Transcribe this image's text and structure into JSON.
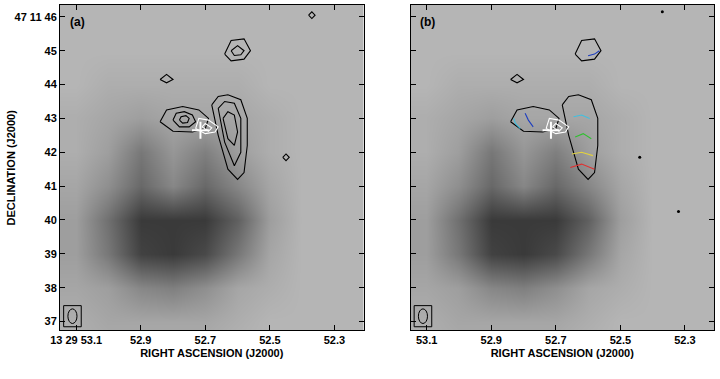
{
  "chart_data": [
    {
      "type": "image",
      "label": "(a)",
      "x_label": "RIGHT ASCENSION (J2000)",
      "y_label": "DECLINATION (J2000)",
      "xlim": [
        53.15,
        52.21
      ],
      "ylim": [
        36.75,
        46.35
      ],
      "xticks": [
        {
          "value": 53.1,
          "label": "13 29 53.1"
        },
        52.9,
        52.7,
        52.5,
        52.3
      ],
      "yticks": [
        37,
        38,
        39,
        40,
        41,
        42,
        43,
        44,
        45,
        {
          "value": 46,
          "label": "47 11 46"
        }
      ],
      "image": {
        "x": [
          53.1,
          53.0,
          52.9,
          52.8,
          52.7,
          52.6,
          52.5,
          52.4,
          52.3,
          52.2
        ],
        "y": [
          36,
          37,
          38,
          39,
          40,
          41,
          42,
          43,
          44,
          45,
          46
        ],
        "zlim": [
          0,
          1
        ],
        "z": [
          [
            0.25,
            0.25,
            0.25,
            0.25,
            0.25,
            0.2,
            0.2,
            0.2,
            0.2,
            0.2
          ],
          [
            0.25,
            0.3,
            0.3,
            0.3,
            0.3,
            0.25,
            0.2,
            0.2,
            0.2,
            0.2
          ],
          [
            0.3,
            0.35,
            0.5,
            0.55,
            0.45,
            0.3,
            0.25,
            0.2,
            0.2,
            0.2
          ],
          [
            0.35,
            0.6,
            0.95,
            1,
            0.9,
            0.6,
            0.3,
            0.2,
            0.2,
            0.2
          ],
          [
            0.35,
            0.65,
            1,
            1,
            1,
            0.75,
            0.35,
            0.2,
            0.2,
            0.2
          ],
          [
            0.3,
            0.45,
            0.7,
            0.5,
            0.7,
            0.5,
            0.3,
            0.2,
            0.2,
            0.2
          ],
          [
            0.25,
            0.35,
            0.6,
            0.4,
            0.55,
            0.35,
            0.25,
            0.2,
            0.2,
            0.2
          ],
          [
            0.25,
            0.3,
            0.35,
            0.3,
            0.3,
            0.3,
            0.25,
            0.2,
            0.2,
            0.2
          ],
          [
            0.2,
            0.25,
            0.25,
            0.25,
            0.25,
            0.25,
            0.2,
            0.2,
            0.2,
            0.2
          ],
          [
            0.2,
            0.2,
            0.2,
            0.2,
            0.2,
            0.2,
            0.2,
            0.2,
            0.2,
            0.2
          ],
          [
            0.2,
            0.2,
            0.2,
            0.2,
            0.2,
            0.2,
            0.2,
            0.2,
            0.2,
            0.2
          ]
        ]
      },
      "contours": [
        {
          "color": "#000000",
          "x": [
            52.84,
            52.82,
            52.77,
            52.72,
            52.69,
            52.7,
            52.74,
            52.8,
            52.84
          ],
          "y": [
            42.9,
            43.25,
            43.35,
            43.25,
            43.0,
            42.7,
            42.6,
            42.62,
            42.9
          ]
        },
        {
          "color": "#000000",
          "x": [
            52.8,
            52.79,
            52.765,
            52.74,
            52.73,
            52.75,
            52.78,
            52.8
          ],
          "y": [
            42.95,
            43.15,
            43.2,
            43.1,
            42.9,
            42.75,
            42.75,
            42.95
          ]
        },
        {
          "color": "#000000",
          "x": [
            52.78,
            52.775,
            52.76,
            52.75,
            52.755,
            52.77,
            52.78
          ],
          "y": [
            42.95,
            43.05,
            43.08,
            43.0,
            42.88,
            42.86,
            42.95
          ]
        },
        {
          "color": "#000000",
          "x": [
            52.68,
            52.66,
            52.63,
            52.59,
            52.57,
            52.57,
            52.58,
            52.6,
            52.63,
            52.66,
            52.68
          ],
          "y": [
            43.4,
            43.65,
            43.7,
            43.55,
            43.0,
            42.2,
            41.4,
            41.2,
            41.5,
            42.5,
            43.4
          ]
        },
        {
          "color": "#000000",
          "x": [
            52.66,
            52.64,
            52.61,
            52.59,
            52.59,
            52.61,
            52.64,
            52.66
          ],
          "y": [
            43.3,
            43.5,
            43.45,
            43.0,
            42.0,
            41.6,
            42.3,
            43.3
          ]
        },
        {
          "color": "#000000",
          "x": [
            52.645,
            52.63,
            52.61,
            52.6,
            52.61,
            52.63,
            52.645
          ],
          "y": [
            43.0,
            43.2,
            43.1,
            42.6,
            42.2,
            42.4,
            43.0
          ]
        },
        {
          "color": "#000000",
          "x": [
            52.64,
            52.62,
            52.58,
            52.56,
            52.58,
            52.62,
            52.64
          ],
          "y": [
            44.9,
            45.3,
            45.35,
            45.0,
            44.75,
            44.7,
            44.9
          ]
        },
        {
          "color": "#000000",
          "x": [
            52.62,
            52.6,
            52.58,
            52.59,
            52.61,
            52.62
          ],
          "y": [
            45.0,
            45.15,
            45.0,
            44.88,
            44.86,
            45.0
          ]
        },
        {
          "color": "#000000",
          "x": [
            52.84,
            52.82,
            52.8,
            52.82,
            52.84
          ],
          "y": [
            44.15,
            44.3,
            44.15,
            44.05,
            44.15
          ]
        },
        {
          "color": "#000000",
          "x": [
            52.46,
            52.45,
            52.44,
            52.45,
            52.46
          ],
          "y": [
            41.85,
            41.95,
            41.85,
            41.75,
            41.85
          ]
        },
        {
          "color": "#000000",
          "x": [
            52.38,
            52.37,
            52.36,
            52.37,
            52.38
          ],
          "y": [
            46.05,
            46.15,
            46.05,
            45.95,
            46.05
          ]
        },
        {
          "color": "#ffffff",
          "x": [
            52.73,
            52.72,
            52.69,
            52.66,
            52.67,
            52.7,
            52.73
          ],
          "y": [
            42.7,
            43.0,
            42.95,
            42.75,
            42.6,
            42.55,
            42.7
          ]
        },
        {
          "color": "#ffffff",
          "x": [
            52.71,
            52.7,
            52.68,
            52.69,
            52.71
          ],
          "y": [
            42.75,
            42.85,
            42.72,
            42.62,
            42.75
          ]
        }
      ],
      "markers": [
        {
          "x": 52.715,
          "y": 42.65,
          "color": "#ffffff",
          "marker": "cross"
        }
      ]
    },
    {
      "type": "image",
      "label": "(b)",
      "x_label": "RIGHT ASCENSION (J2000)",
      "tick_labels": "x",
      "xlim": [
        53.15,
        52.21
      ],
      "ylim": [
        36.75,
        46.35
      ],
      "xticks": [
        53.1,
        52.9,
        52.7,
        52.5,
        52.3
      ],
      "yticks": [
        37,
        38,
        39,
        40,
        41,
        42,
        43,
        44,
        45,
        46
      ],
      "image": {
        "x": [
          53.1,
          53.0,
          52.9,
          52.8,
          52.7,
          52.6,
          52.5,
          52.4,
          52.3,
          52.2
        ],
        "y": [
          36,
          37,
          38,
          39,
          40,
          41,
          42,
          43,
          44,
          45,
          46
        ],
        "zlim": [
          0,
          1
        ],
        "z": [
          [
            0.25,
            0.25,
            0.25,
            0.25,
            0.25,
            0.2,
            0.2,
            0.2,
            0.2,
            0.2
          ],
          [
            0.25,
            0.3,
            0.3,
            0.3,
            0.3,
            0.25,
            0.2,
            0.2,
            0.2,
            0.2
          ],
          [
            0.3,
            0.35,
            0.5,
            0.55,
            0.45,
            0.3,
            0.25,
            0.2,
            0.2,
            0.2
          ],
          [
            0.35,
            0.6,
            0.95,
            1,
            0.9,
            0.6,
            0.3,
            0.2,
            0.2,
            0.2
          ],
          [
            0.35,
            0.65,
            1,
            1,
            1,
            0.75,
            0.35,
            0.2,
            0.2,
            0.2
          ],
          [
            0.3,
            0.45,
            0.7,
            0.5,
            0.7,
            0.5,
            0.3,
            0.2,
            0.2,
            0.2
          ],
          [
            0.25,
            0.35,
            0.6,
            0.4,
            0.55,
            0.35,
            0.25,
            0.2,
            0.2,
            0.2
          ],
          [
            0.25,
            0.3,
            0.35,
            0.3,
            0.3,
            0.3,
            0.25,
            0.2,
            0.2,
            0.2
          ],
          [
            0.2,
            0.25,
            0.25,
            0.25,
            0.25,
            0.25,
            0.2,
            0.2,
            0.2,
            0.2
          ],
          [
            0.2,
            0.2,
            0.2,
            0.2,
            0.2,
            0.2,
            0.2,
            0.2,
            0.2,
            0.2
          ],
          [
            0.2,
            0.2,
            0.2,
            0.2,
            0.2,
            0.2,
            0.2,
            0.2,
            0.2,
            0.2
          ]
        ]
      },
      "contours": [
        {
          "color": "#000000",
          "x": [
            52.84,
            52.82,
            52.77,
            52.72,
            52.69,
            52.7,
            52.74,
            52.8,
            52.84
          ],
          "y": [
            42.9,
            43.25,
            43.35,
            43.25,
            43.0,
            42.7,
            42.6,
            42.62,
            42.9
          ]
        },
        {
          "color": "#000000",
          "x": [
            52.68,
            52.66,
            52.63,
            52.59,
            52.57,
            52.57,
            52.58,
            52.6,
            52.63,
            52.66,
            52.68
          ],
          "y": [
            43.4,
            43.65,
            43.7,
            43.55,
            43.0,
            42.2,
            41.4,
            41.2,
            41.5,
            42.5,
            43.4
          ]
        },
        {
          "color": "#000000",
          "x": [
            52.64,
            52.62,
            52.58,
            52.56,
            52.58,
            52.62,
            52.64
          ],
          "y": [
            44.9,
            45.3,
            45.35,
            45.0,
            44.75,
            44.7,
            44.9
          ]
        },
        {
          "color": "#000000",
          "x": [
            52.84,
            52.82,
            52.8,
            52.82,
            52.84
          ],
          "y": [
            44.15,
            44.3,
            44.15,
            44.05,
            44.15
          ]
        },
        {
          "color": "#1f3fbf",
          "x": [
            52.795,
            52.785,
            52.77
          ],
          "y": [
            43.15,
            42.95,
            42.75
          ]
        },
        {
          "color": "#40c0e0",
          "x": [
            52.83,
            52.825,
            52.81
          ],
          "y": [
            43.0,
            42.85,
            42.7
          ]
        },
        {
          "color": "#40c0e0",
          "x": [
            52.645,
            52.62,
            52.595
          ],
          "y": [
            43.05,
            43.1,
            43.0
          ]
        },
        {
          "color": "#30c030",
          "x": [
            52.64,
            52.615,
            52.59
          ],
          "y": [
            42.45,
            42.55,
            42.4
          ]
        },
        {
          "color": "#e0d040",
          "x": [
            52.65,
            52.62,
            52.585
          ],
          "y": [
            41.95,
            42.0,
            41.9
          ]
        },
        {
          "color": "#e03030",
          "x": [
            52.655,
            52.62,
            52.58
          ],
          "y": [
            41.55,
            41.65,
            41.5
          ]
        },
        {
          "color": "#1f3fbf",
          "x": [
            52.6,
            52.58,
            52.565
          ],
          "y": [
            44.85,
            44.9,
            45.0
          ]
        },
        {
          "color": "#ffffff",
          "x": [
            52.73,
            52.72,
            52.69,
            52.66,
            52.67,
            52.7,
            52.73
          ],
          "y": [
            42.7,
            43.0,
            42.95,
            42.75,
            42.6,
            42.55,
            42.7
          ]
        },
        {
          "color": "#ffffff",
          "x": [
            52.71,
            52.7,
            52.68,
            52.69,
            52.71
          ],
          "y": [
            42.75,
            42.85,
            42.72,
            42.62,
            42.75
          ]
        }
      ],
      "markers": [
        {
          "x": 52.715,
          "y": 42.65,
          "color": "#ffffff",
          "marker": "cross"
        },
        {
          "x": 52.44,
          "y": 41.85,
          "color": "#000000",
          "marker": "dot"
        },
        {
          "x": 52.32,
          "y": 40.25,
          "color": "#000000",
          "marker": "dot"
        },
        {
          "x": 52.37,
          "y": 46.15,
          "color": "#000000",
          "marker": "dot"
        }
      ]
    }
  ]
}
